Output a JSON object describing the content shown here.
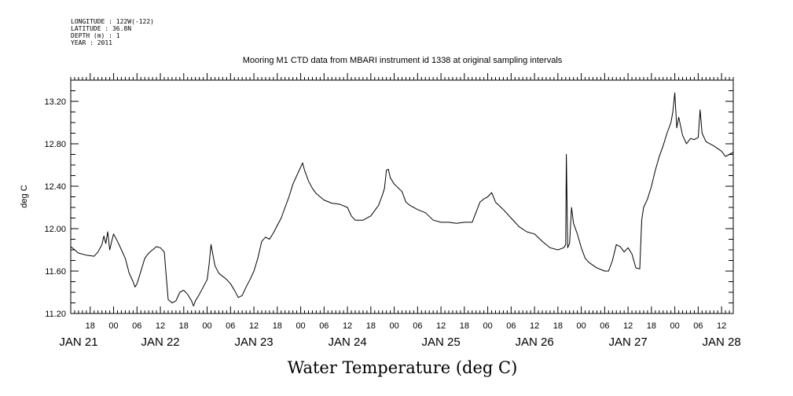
{
  "header": {
    "longitude": "LONGITUDE : 122W(-122)",
    "latitude": "LATITUDE : 36.8N",
    "depth": "DEPTH (m) : 1",
    "year": "YEAR : 2011"
  },
  "chart_data": {
    "type": "line",
    "title": "Mooring M1 CTD data from MBARI instrument id 1338 at original sampling intervals",
    "xlabel": "Water Temperature (deg C)",
    "ylabel": "deg C",
    "ylim": [
      11.2,
      13.4
    ],
    "yticks": [
      "11.20",
      "11.60",
      "12.00",
      "12.40",
      "12.80",
      "13.20"
    ],
    "xlim": [
      "2011-01-21T13:00",
      "2011-01-28T15:00"
    ],
    "x_hour_labels": [
      "18",
      "00",
      "06",
      "12",
      "18",
      "00",
      "06",
      "12",
      "18",
      "00",
      "06",
      "12",
      "18",
      "00",
      "06",
      "12",
      "18",
      "00",
      "06",
      "12",
      "18",
      "00",
      "06",
      "12",
      "18",
      "00",
      "06",
      "12"
    ],
    "x_day_labels": [
      {
        "label": "JAN 21",
        "date": "2011-01-21"
      },
      {
        "label": "JAN 22",
        "date": "2011-01-22"
      },
      {
        "label": "JAN 23",
        "date": "2011-01-23"
      },
      {
        "label": "JAN 24",
        "date": "2011-01-24"
      },
      {
        "label": "JAN 25",
        "date": "2011-01-25"
      },
      {
        "label": "JAN 26",
        "date": "2011-01-26"
      },
      {
        "label": "JAN 27",
        "date": "2011-01-27"
      },
      {
        "label": "JAN 28",
        "date": "2011-01-28"
      }
    ],
    "grid": false,
    "series": [
      {
        "points": [
          [
            "2011-01-21T13:00",
            11.83
          ],
          [
            "2011-01-21T14:00",
            11.8
          ],
          [
            "2011-01-21T15:00",
            11.77
          ],
          [
            "2011-01-21T17:00",
            11.75
          ],
          [
            "2011-01-21T19:00",
            11.74
          ],
          [
            "2011-01-21T20:00",
            11.78
          ],
          [
            "2011-01-21T21:00",
            11.85
          ],
          [
            "2011-01-21T21:30",
            11.93
          ],
          [
            "2011-01-21T22:00",
            11.86
          ],
          [
            "2011-01-21T22:30",
            11.97
          ],
          [
            "2011-01-21T23:00",
            11.8
          ],
          [
            "2011-01-21T23:30",
            11.88
          ],
          [
            "2011-01-22T00:00",
            11.95
          ],
          [
            "2011-01-22T01:00",
            11.88
          ],
          [
            "2011-01-22T02:00",
            11.8
          ],
          [
            "2011-01-22T03:00",
            11.72
          ],
          [
            "2011-01-22T04:00",
            11.58
          ],
          [
            "2011-01-22T05:00",
            11.5
          ],
          [
            "2011-01-22T05:30",
            11.45
          ],
          [
            "2011-01-22T06:00",
            11.48
          ],
          [
            "2011-01-22T07:00",
            11.6
          ],
          [
            "2011-01-22T08:00",
            11.72
          ],
          [
            "2011-01-22T09:00",
            11.77
          ],
          [
            "2011-01-22T10:00",
            11.8
          ],
          [
            "2011-01-22T11:00",
            11.83
          ],
          [
            "2011-01-22T12:00",
            11.82
          ],
          [
            "2011-01-22T13:00",
            11.78
          ],
          [
            "2011-01-22T13:30",
            11.55
          ],
          [
            "2011-01-22T14:00",
            11.33
          ],
          [
            "2011-01-22T15:00",
            11.3
          ],
          [
            "2011-01-22T16:00",
            11.32
          ],
          [
            "2011-01-22T17:00",
            11.4
          ],
          [
            "2011-01-22T18:00",
            11.42
          ],
          [
            "2011-01-22T19:00",
            11.38
          ],
          [
            "2011-01-22T20:00",
            11.32
          ],
          [
            "2011-01-22T20:30",
            11.27
          ],
          [
            "2011-01-22T21:00",
            11.32
          ],
          [
            "2011-01-22T22:00",
            11.38
          ],
          [
            "2011-01-22T23:00",
            11.45
          ],
          [
            "2011-01-23T00:00",
            11.52
          ],
          [
            "2011-01-23T00:30",
            11.66
          ],
          [
            "2011-01-23T01:00",
            11.85
          ],
          [
            "2011-01-23T02:00",
            11.65
          ],
          [
            "2011-01-23T03:00",
            11.58
          ],
          [
            "2011-01-23T04:00",
            11.55
          ],
          [
            "2011-01-23T05:00",
            11.52
          ],
          [
            "2011-01-23T06:00",
            11.48
          ],
          [
            "2011-01-23T07:00",
            11.42
          ],
          [
            "2011-01-23T08:00",
            11.35
          ],
          [
            "2011-01-23T09:00",
            11.37
          ],
          [
            "2011-01-23T10:00",
            11.45
          ],
          [
            "2011-01-23T11:00",
            11.52
          ],
          [
            "2011-01-23T12:00",
            11.6
          ],
          [
            "2011-01-23T13:00",
            11.72
          ],
          [
            "2011-01-23T14:00",
            11.88
          ],
          [
            "2011-01-23T15:00",
            11.92
          ],
          [
            "2011-01-23T16:00",
            11.9
          ],
          [
            "2011-01-23T17:00",
            11.96
          ],
          [
            "2011-01-23T18:00",
            12.03
          ],
          [
            "2011-01-23T19:00",
            12.1
          ],
          [
            "2011-01-23T20:00",
            12.2
          ],
          [
            "2011-01-23T21:00",
            12.3
          ],
          [
            "2011-01-23T22:00",
            12.42
          ],
          [
            "2011-01-23T23:00",
            12.5
          ],
          [
            "2011-01-24T00:00",
            12.58
          ],
          [
            "2011-01-24T00:30",
            12.62
          ],
          [
            "2011-01-24T01:00",
            12.55
          ],
          [
            "2011-01-24T02:00",
            12.45
          ],
          [
            "2011-01-24T03:00",
            12.38
          ],
          [
            "2011-01-24T04:00",
            12.33
          ],
          [
            "2011-01-24T06:00",
            12.27
          ],
          [
            "2011-01-24T08:00",
            12.24
          ],
          [
            "2011-01-24T10:00",
            12.23
          ],
          [
            "2011-01-24T12:00",
            12.2
          ],
          [
            "2011-01-24T13:00",
            12.12
          ],
          [
            "2011-01-24T14:00",
            12.08
          ],
          [
            "2011-01-24T16:00",
            12.08
          ],
          [
            "2011-01-24T18:00",
            12.12
          ],
          [
            "2011-01-24T20:00",
            12.22
          ],
          [
            "2011-01-24T21:00",
            12.32
          ],
          [
            "2011-01-24T21:30",
            12.38
          ],
          [
            "2011-01-24T22:00",
            12.55
          ],
          [
            "2011-01-24T22:30",
            12.56
          ],
          [
            "2011-01-24T23:00",
            12.48
          ],
          [
            "2011-01-25T00:00",
            12.42
          ],
          [
            "2011-01-25T02:00",
            12.35
          ],
          [
            "2011-01-25T03:00",
            12.25
          ],
          [
            "2011-01-25T04:00",
            12.22
          ],
          [
            "2011-01-25T06:00",
            12.18
          ],
          [
            "2011-01-25T08:00",
            12.15
          ],
          [
            "2011-01-25T10:00",
            12.08
          ],
          [
            "2011-01-25T12:00",
            12.06
          ],
          [
            "2011-01-25T14:00",
            12.06
          ],
          [
            "2011-01-25T16:00",
            12.05
          ],
          [
            "2011-01-25T18:00",
            12.06
          ],
          [
            "2011-01-25T20:00",
            12.06
          ],
          [
            "2011-01-25T22:00",
            12.25
          ],
          [
            "2011-01-25T23:00",
            12.28
          ],
          [
            "2011-01-26T00:00",
            12.3
          ],
          [
            "2011-01-26T01:00",
            12.34
          ],
          [
            "2011-01-26T02:00",
            12.25
          ],
          [
            "2011-01-26T04:00",
            12.18
          ],
          [
            "2011-01-26T06:00",
            12.1
          ],
          [
            "2011-01-26T08:00",
            12.02
          ],
          [
            "2011-01-26T10:00",
            11.97
          ],
          [
            "2011-01-26T12:00",
            11.95
          ],
          [
            "2011-01-26T14:00",
            11.88
          ],
          [
            "2011-01-26T16:00",
            11.82
          ],
          [
            "2011-01-26T18:00",
            11.8
          ],
          [
            "2011-01-26T19:30",
            11.82
          ],
          [
            "2011-01-26T20:00",
            11.85
          ],
          [
            "2011-01-26T20:10",
            12.7
          ],
          [
            "2011-01-26T20:30",
            11.82
          ],
          [
            "2011-01-26T21:00",
            11.86
          ],
          [
            "2011-01-26T21:30",
            12.2
          ],
          [
            "2011-01-26T22:00",
            12.05
          ],
          [
            "2011-01-26T23:00",
            11.95
          ],
          [
            "2011-01-27T00:00",
            11.82
          ],
          [
            "2011-01-27T01:00",
            11.72
          ],
          [
            "2011-01-27T02:00",
            11.68
          ],
          [
            "2011-01-27T04:00",
            11.63
          ],
          [
            "2011-01-27T06:00",
            11.6
          ],
          [
            "2011-01-27T07:00",
            11.6
          ],
          [
            "2011-01-27T08:00",
            11.7
          ],
          [
            "2011-01-27T09:00",
            11.85
          ],
          [
            "2011-01-27T10:00",
            11.83
          ],
          [
            "2011-01-27T11:00",
            11.78
          ],
          [
            "2011-01-27T12:00",
            11.82
          ],
          [
            "2011-01-27T13:00",
            11.76
          ],
          [
            "2011-01-27T14:00",
            11.63
          ],
          [
            "2011-01-27T15:00",
            11.62
          ],
          [
            "2011-01-27T15:30",
            12.08
          ],
          [
            "2011-01-27T16:00",
            12.2
          ],
          [
            "2011-01-27T17:00",
            12.28
          ],
          [
            "2011-01-27T18:00",
            12.4
          ],
          [
            "2011-01-27T19:00",
            12.55
          ],
          [
            "2011-01-27T20:00",
            12.68
          ],
          [
            "2011-01-27T21:00",
            12.78
          ],
          [
            "2011-01-27T22:00",
            12.9
          ],
          [
            "2011-01-27T23:00",
            13.0
          ],
          [
            "2011-01-27T23:30",
            13.1
          ],
          [
            "2011-01-28T00:00",
            13.28
          ],
          [
            "2011-01-28T00:30",
            12.95
          ],
          [
            "2011-01-28T01:00",
            13.05
          ],
          [
            "2011-01-28T02:00",
            12.88
          ],
          [
            "2011-01-28T03:00",
            12.8
          ],
          [
            "2011-01-28T04:00",
            12.85
          ],
          [
            "2011-01-28T05:00",
            12.84
          ],
          [
            "2011-01-28T06:00",
            12.86
          ],
          [
            "2011-01-28T06:30",
            13.12
          ],
          [
            "2011-01-28T07:00",
            12.9
          ],
          [
            "2011-01-28T08:00",
            12.82
          ],
          [
            "2011-01-28T10:00",
            12.78
          ],
          [
            "2011-01-28T12:00",
            12.73
          ],
          [
            "2011-01-28T13:00",
            12.68
          ],
          [
            "2011-01-28T14:00",
            12.7
          ],
          [
            "2011-01-28T15:00",
            12.72
          ]
        ]
      }
    ]
  }
}
